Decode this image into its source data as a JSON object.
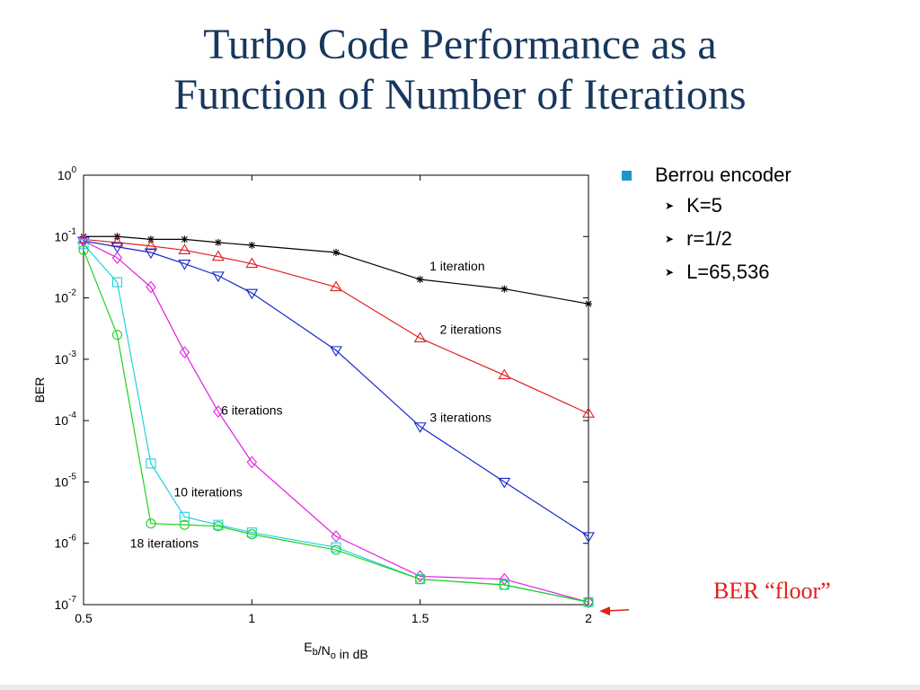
{
  "slide": {
    "title_line1": "Turbo Code Performance as a",
    "title_line2": "Function of Number of Iterations",
    "bullets": {
      "main": "Berrou encoder",
      "subs": [
        "K=5",
        "r=1/2",
        "L=65,536"
      ]
    },
    "annotation": "BER “floor”"
  },
  "colors": {
    "title": "#17375e",
    "bullet_square": "#1c97c9",
    "annotation": "#e0201b"
  },
  "chart_data": {
    "type": "line",
    "xlabel": "E_b/N_o in dB",
    "ylabel": "BER",
    "xlim": [
      0.5,
      2
    ],
    "ylim": [
      1e-07,
      1
    ],
    "yscale": "log",
    "xticks": [
      0.5,
      1,
      1.5,
      2
    ],
    "xtick_labels": [
      "0.5",
      "1",
      "1.5",
      "2"
    ],
    "yticks": [
      0,
      -1,
      -2,
      -3,
      -4,
      -5,
      -6,
      -7
    ],
    "ytick_labels": [
      {
        "base": "10",
        "exp": "0"
      },
      {
        "base": "10",
        "exp": "-1"
      },
      {
        "base": "10",
        "exp": "-2"
      },
      {
        "base": "10",
        "exp": "-3"
      },
      {
        "base": "10",
        "exp": "-4"
      },
      {
        "base": "10",
        "exp": "-5"
      },
      {
        "base": "10",
        "exp": "-6"
      },
      {
        "base": "10",
        "exp": "-7"
      }
    ],
    "grid": false,
    "series": [
      {
        "label": "1 iteration",
        "color": "#000000",
        "marker": "star",
        "x": [
          0.5,
          0.6,
          0.7,
          0.8,
          0.9,
          1.0,
          1.25,
          1.5,
          1.75,
          2.0
        ],
        "y": [
          0.1,
          0.1,
          0.09,
          0.09,
          0.08,
          0.072,
          0.055,
          0.02,
          0.014,
          0.008
        ]
      },
      {
        "label": "2 iterations",
        "color": "#e02020",
        "marker": "triangle-up",
        "x": [
          0.5,
          0.6,
          0.7,
          0.8,
          0.9,
          1.0,
          1.25,
          1.5,
          1.75,
          2.0
        ],
        "y": [
          0.09,
          0.08,
          0.07,
          0.06,
          0.047,
          0.036,
          0.015,
          0.0022,
          0.00055,
          0.00013
        ]
      },
      {
        "label": "3 iterations",
        "color": "#1428c8",
        "marker": "triangle-down",
        "x": [
          0.5,
          0.6,
          0.7,
          0.8,
          0.9,
          1.0,
          1.25,
          1.5,
          1.75,
          2.0
        ],
        "y": [
          0.085,
          0.068,
          0.055,
          0.036,
          0.023,
          0.012,
          0.0014,
          8e-05,
          1e-05,
          1.3e-06
        ]
      },
      {
        "label": "6 iterations",
        "color": "#e020e0",
        "marker": "diamond",
        "x": [
          0.5,
          0.6,
          0.7,
          0.8,
          0.9,
          1.0,
          1.25,
          1.5,
          1.75,
          2.0
        ],
        "y": [
          0.085,
          0.045,
          0.015,
          0.0013,
          0.00014,
          2.1e-05,
          1.3e-06,
          2.9e-07,
          2.6e-07,
          1.1e-07
        ]
      },
      {
        "label": "10 iterations",
        "color": "#20d0e0",
        "marker": "square",
        "x": [
          0.5,
          0.6,
          0.7,
          0.8,
          0.9,
          1.0,
          1.25,
          1.5,
          1.75,
          2.0
        ],
        "y": [
          0.075,
          0.018,
          2e-05,
          2.7e-06,
          2e-06,
          1.5e-06,
          8.6e-07,
          2.6e-07,
          2.1e-07,
          1.1e-07
        ]
      },
      {
        "label": "18 iterations",
        "color": "#20d020",
        "marker": "circle",
        "x": [
          0.5,
          0.6,
          0.7,
          0.8,
          0.9,
          1.0,
          1.25,
          1.5,
          1.75,
          2.0
        ],
        "y": [
          0.06,
          0.0025,
          2.1e-06,
          2e-06,
          1.9e-06,
          1.4e-06,
          7.8e-07,
          2.6e-07,
          2.1e-07,
          1.1e-07
        ]
      }
    ],
    "annotations": [
      {
        "text": "1 iteration",
        "x": 1.61,
        "y": 0.028
      },
      {
        "text": "2 iterations",
        "x": 1.65,
        "y": 0.0026
      },
      {
        "text": "3 iterations",
        "x": 1.62,
        "y": 9.5e-05
      },
      {
        "text": "6 iterations",
        "x": 1.0,
        "y": 0.000125
      },
      {
        "text": "10 iterations",
        "x": 0.87,
        "y": 5.8e-06
      },
      {
        "text": "18 iterations",
        "x": 0.74,
        "y": 8.5e-07
      }
    ]
  }
}
